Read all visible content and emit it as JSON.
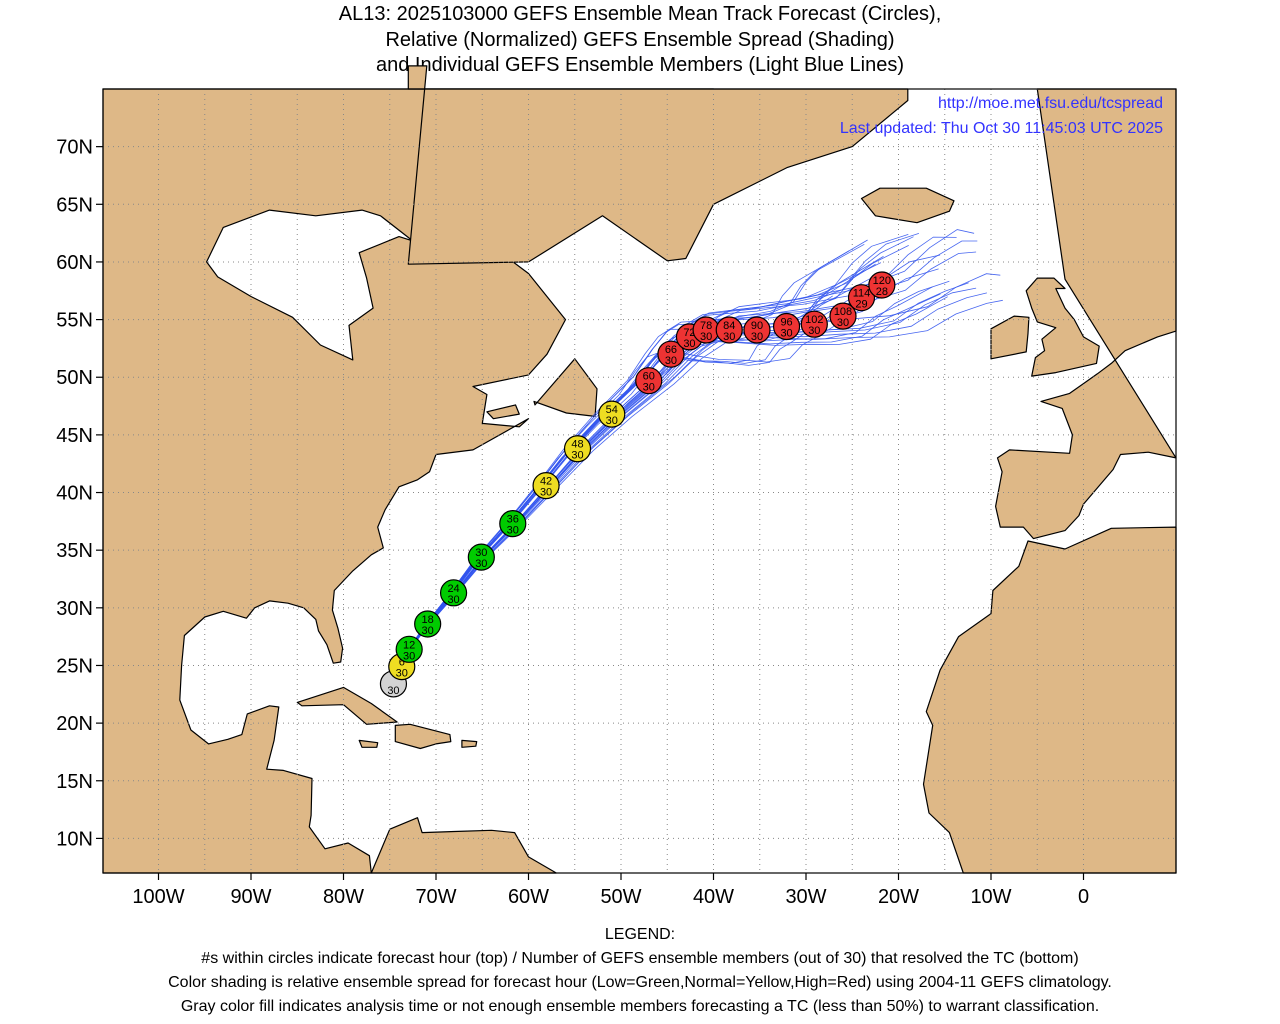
{
  "title": {
    "line1": "AL13: 2025103000 GEFS Ensemble Mean Track Forecast (Circles),",
    "line2": "Relative (Normalized) GEFS Ensemble Spread (Shading)",
    "line3": "and Individual GEFS Ensemble Members (Light Blue Lines)"
  },
  "credits": {
    "url": "http://moe.met.fsu.edu/tcspread",
    "updated": "Last updated: Thu Oct 30 11:45:03 UTC 2025"
  },
  "legend": {
    "heading": "LEGEND:",
    "line1": "#s within circles indicate forecast hour (top) / Number of GEFS ensemble members (out of 30) that resolved the TC (bottom)",
    "line2": "Color shading is relative ensemble spread for forecast hour (Low=Green,Normal=Yellow,High=Red) using 2004-11 GEFS climatology.",
    "line3": "Gray color fill indicates analysis time or not enough ensemble members forecasting a TC (less than 50%) to warrant classification."
  },
  "colors": {
    "land": "#deb887",
    "ocean": "#ffffff",
    "member_tracks": "#3355ee",
    "low_spread": "#00cc00",
    "normal_spread": "#eedd22",
    "high_spread": "#ee3333",
    "analysis": "#d3d3d3",
    "credit_text": "#3333ff"
  },
  "chart_data": {
    "type": "scatter",
    "xlim": [
      -106,
      10
    ],
    "ylim": [
      7,
      75
    ],
    "grid": true,
    "x_ticks": [
      {
        "value": -100,
        "label": "100W"
      },
      {
        "value": -90,
        "label": "90W"
      },
      {
        "value": -80,
        "label": "80W"
      },
      {
        "value": -70,
        "label": "70W"
      },
      {
        "value": -60,
        "label": "60W"
      },
      {
        "value": -50,
        "label": "50W"
      },
      {
        "value": -40,
        "label": "40W"
      },
      {
        "value": -30,
        "label": "30W"
      },
      {
        "value": -20,
        "label": "20W"
      },
      {
        "value": -10,
        "label": "10W"
      },
      {
        "value": 0,
        "label": "0"
      }
    ],
    "y_ticks": [
      {
        "value": 10,
        "label": "10N"
      },
      {
        "value": 15,
        "label": "15N"
      },
      {
        "value": 20,
        "label": "20N"
      },
      {
        "value": 25,
        "label": "25N"
      },
      {
        "value": 30,
        "label": "30N"
      },
      {
        "value": 35,
        "label": "35N"
      },
      {
        "value": 40,
        "label": "40N"
      },
      {
        "value": 45,
        "label": "45N"
      },
      {
        "value": 50,
        "label": "50N"
      },
      {
        "value": 55,
        "label": "55N"
      },
      {
        "value": 60,
        "label": "60N"
      },
      {
        "value": 65,
        "label": "65N"
      },
      {
        "value": 70,
        "label": "70N"
      }
    ],
    "mean_track": [
      {
        "hour": "",
        "members": "30",
        "lon": -74.6,
        "lat": 23.4,
        "spread": "analysis"
      },
      {
        "hour": "6",
        "members": "30",
        "lon": -73.7,
        "lat": 24.9,
        "spread": "normal"
      },
      {
        "hour": "12",
        "members": "30",
        "lon": -72.9,
        "lat": 26.4,
        "spread": "low"
      },
      {
        "hour": "18",
        "members": "30",
        "lon": -70.9,
        "lat": 28.6,
        "spread": "low"
      },
      {
        "hour": "24",
        "members": "30",
        "lon": -68.1,
        "lat": 31.3,
        "spread": "low"
      },
      {
        "hour": "30",
        "members": "30",
        "lon": -65.1,
        "lat": 34.4,
        "spread": "low"
      },
      {
        "hour": "36",
        "members": "30",
        "lon": -61.7,
        "lat": 37.3,
        "spread": "low"
      },
      {
        "hour": "42",
        "members": "30",
        "lon": -58.1,
        "lat": 40.6,
        "spread": "normal"
      },
      {
        "hour": "48",
        "members": "30",
        "lon": -54.7,
        "lat": 43.8,
        "spread": "normal"
      },
      {
        "hour": "54",
        "members": "30",
        "lon": -51.0,
        "lat": 46.8,
        "spread": "normal"
      },
      {
        "hour": "60",
        "members": "30",
        "lon": -47.0,
        "lat": 49.7,
        "spread": "high"
      },
      {
        "hour": "66",
        "members": "30",
        "lon": -44.6,
        "lat": 52.0,
        "spread": "high"
      },
      {
        "hour": "72",
        "members": "30",
        "lon": -42.6,
        "lat": 53.5,
        "spread": "high"
      },
      {
        "hour": "78",
        "members": "30",
        "lon": -40.8,
        "lat": 54.1,
        "spread": "high"
      },
      {
        "hour": "84",
        "members": "30",
        "lon": -38.3,
        "lat": 54.1,
        "spread": "high"
      },
      {
        "hour": "90",
        "members": "30",
        "lon": -35.3,
        "lat": 54.1,
        "spread": "high"
      },
      {
        "hour": "96",
        "members": "30",
        "lon": -32.1,
        "lat": 54.4,
        "spread": "high"
      },
      {
        "hour": "102",
        "members": "30",
        "lon": -29.1,
        "lat": 54.6,
        "spread": "high"
      },
      {
        "hour": "108",
        "members": "30",
        "lon": -26.0,
        "lat": 55.3,
        "spread": "high"
      },
      {
        "hour": "114",
        "members": "29",
        "lon": -24.0,
        "lat": 56.9,
        "spread": "high"
      },
      {
        "hour": "120",
        "members": "28",
        "lon": -21.8,
        "lat": 58.0,
        "spread": "high"
      }
    ],
    "member_tracks_shown": 30
  }
}
